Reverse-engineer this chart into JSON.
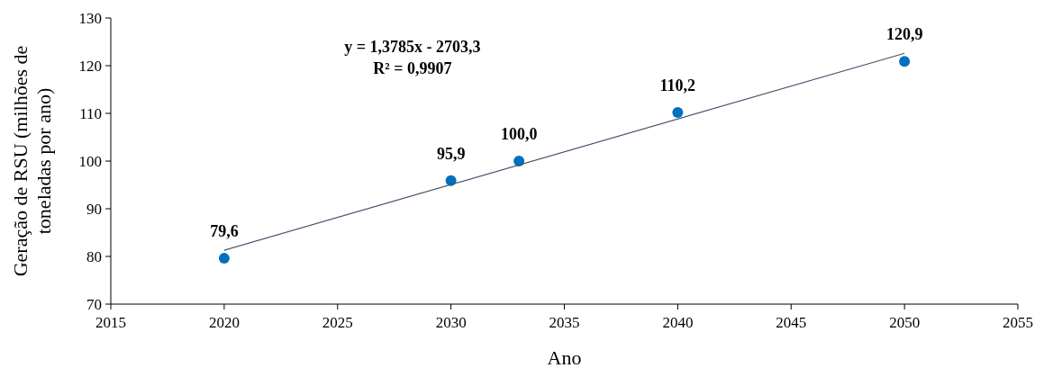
{
  "chart_data": {
    "type": "scatter",
    "xlabel": "Ano",
    "ylabel": "Geração de RSU (milhões de toneladas por ano)",
    "annotations": [
      "y = 1,3785x - 2703,3",
      "R² = 0,9907"
    ],
    "xlim": [
      2015,
      2055
    ],
    "xticks": [
      2015,
      2020,
      2025,
      2030,
      2035,
      2040,
      2045,
      2050,
      2055
    ],
    "ylim": [
      70,
      130
    ],
    "yticks": [
      70,
      80,
      90,
      100,
      110,
      120,
      130
    ],
    "grid": false,
    "series": [
      {
        "marker": "circle",
        "color": "#0070c0",
        "x": [
          2020,
          2030,
          2033,
          2040,
          2050
        ],
        "values": [
          79.6,
          95.9,
          100.0,
          110.2,
          120.9
        ],
        "value_labels": [
          "79,6",
          "95,9",
          "100,0",
          "110,2",
          "120,9"
        ]
      },
      {
        "type": "line",
        "marker": "none",
        "color": "#44546a",
        "x": [
          2020,
          2050
        ],
        "values": [
          81.3,
          122.6
        ]
      }
    ]
  }
}
